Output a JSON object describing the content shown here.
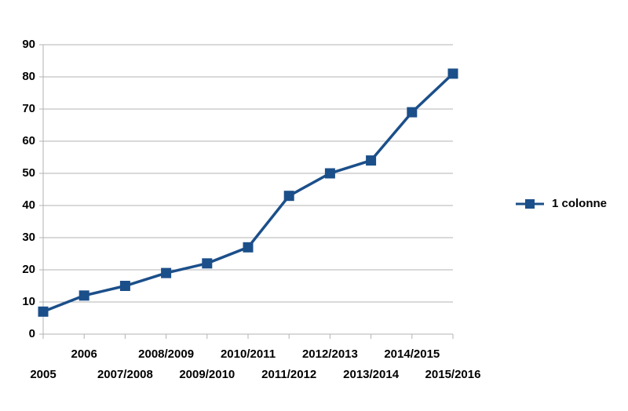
{
  "chart_data": {
    "type": "line",
    "categories": [
      "2005",
      "2006",
      "2007/2008",
      "2008/2009",
      "2009/2010",
      "2010/2011",
      "2011/2012",
      "2012/2013",
      "2013/2014",
      "2014/2015",
      "2015/2016"
    ],
    "series": [
      {
        "name": "1 colonne",
        "color": "#1b4f8a",
        "values": [
          7,
          12,
          15,
          19,
          22,
          27,
          43,
          50,
          54,
          69,
          81
        ]
      }
    ],
    "ylim": [
      0,
      90
    ],
    "yticks": [
      0,
      10,
      20,
      30,
      40,
      50,
      60,
      70,
      80,
      90
    ],
    "grid": true,
    "legend": "right"
  }
}
